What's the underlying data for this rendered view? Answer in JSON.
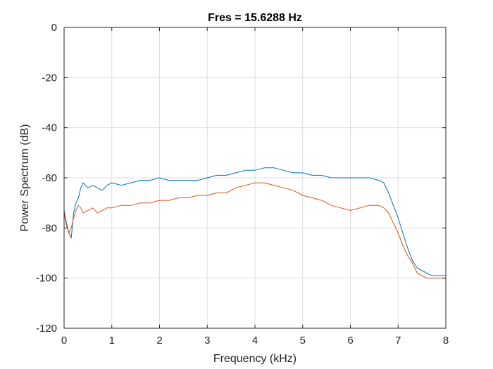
{
  "chart_data": {
    "type": "line",
    "title": "Fres = 15.6288 Hz",
    "xlabel": "Frequency (kHz)",
    "ylabel": "Power Spectrum (dB)",
    "xlim": [
      0,
      8
    ],
    "ylim": [
      -120,
      0
    ],
    "xticks": [
      0,
      1,
      2,
      3,
      4,
      5,
      6,
      7,
      8
    ],
    "yticks": [
      0,
      -20,
      -40,
      -60,
      -80,
      -100,
      -120
    ],
    "xtick_labels": [
      "0",
      "1",
      "2",
      "3",
      "4",
      "5",
      "6",
      "7",
      "8"
    ],
    "ytick_labels": [
      "0",
      "-20",
      "-40",
      "-60",
      "-80",
      "-100",
      "-120"
    ],
    "grid": true,
    "series": [
      {
        "color": "#0072BD",
        "x": [
          0,
          0.05,
          0.1,
          0.15,
          0.2,
          0.25,
          0.3,
          0.35,
          0.4,
          0.5,
          0.6,
          0.7,
          0.8,
          0.9,
          1.0,
          1.2,
          1.4,
          1.6,
          1.8,
          2.0,
          2.2,
          2.4,
          2.6,
          2.8,
          3.0,
          3.2,
          3.4,
          3.6,
          3.8,
          4.0,
          4.2,
          4.4,
          4.6,
          4.8,
          5.0,
          5.2,
          5.4,
          5.6,
          5.8,
          6.0,
          6.2,
          6.4,
          6.6,
          6.7,
          6.8,
          6.9,
          7.0,
          7.1,
          7.2,
          7.3,
          7.4,
          7.5,
          7.6,
          7.7,
          7.8,
          7.9,
          8.0
        ],
        "y": [
          -73,
          -78,
          -82,
          -84,
          -74,
          -70,
          -68,
          -64,
          -62,
          -64,
          -63,
          -64,
          -65,
          -63,
          -62,
          -63,
          -62,
          -61,
          -61,
          -60,
          -61,
          -61,
          -61,
          -61,
          -60,
          -59,
          -59,
          -58,
          -57,
          -57,
          -56,
          -56,
          -57,
          -58,
          -58,
          -59,
          -59,
          -60,
          -60,
          -60,
          -60,
          -60,
          -61,
          -62,
          -66,
          -71,
          -76,
          -82,
          -88,
          -93,
          -96,
          -97,
          -98,
          -99,
          -99,
          -99,
          -99
        ]
      },
      {
        "color": "#D95319",
        "x": [
          0,
          0.05,
          0.1,
          0.15,
          0.2,
          0.25,
          0.3,
          0.35,
          0.4,
          0.5,
          0.6,
          0.7,
          0.8,
          0.9,
          1.0,
          1.2,
          1.4,
          1.6,
          1.8,
          2.0,
          2.2,
          2.4,
          2.6,
          2.8,
          3.0,
          3.2,
          3.4,
          3.6,
          3.8,
          4.0,
          4.2,
          4.4,
          4.6,
          4.8,
          5.0,
          5.2,
          5.4,
          5.6,
          5.8,
          6.0,
          6.2,
          6.4,
          6.6,
          6.7,
          6.8,
          6.9,
          7.0,
          7.1,
          7.2,
          7.3,
          7.4,
          7.5,
          7.6,
          7.7,
          7.8,
          7.9,
          8.0
        ],
        "y": [
          -74,
          -79,
          -82,
          -80,
          -76,
          -73,
          -71,
          -72,
          -74,
          -73,
          -72,
          -74,
          -73,
          -72,
          -72,
          -71,
          -71,
          -70,
          -70,
          -69,
          -69,
          -68,
          -68,
          -67,
          -67,
          -66,
          -66,
          -64,
          -63,
          -62,
          -62,
          -63,
          -64,
          -65,
          -67,
          -68,
          -69,
          -71,
          -72,
          -73,
          -72,
          -71,
          -71,
          -72,
          -74,
          -78,
          -82,
          -87,
          -91,
          -94,
          -98,
          -99,
          -100,
          -100,
          -100,
          -100,
          -100
        ]
      },
      {
        "color": "#EDB120",
        "x": [
          1.0,
          8.0
        ],
        "y": [
          0,
          0
        ]
      }
    ]
  }
}
